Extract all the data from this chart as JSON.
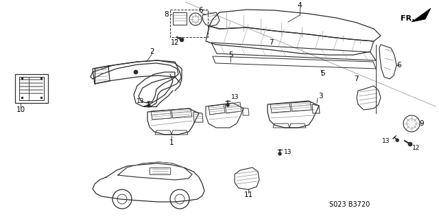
{
  "bg_color": "#ffffff",
  "diagram_code": "S023 B3720",
  "line_color": "#2a2a2a",
  "gray": "#888888",
  "light_gray": "#bbbbbb"
}
